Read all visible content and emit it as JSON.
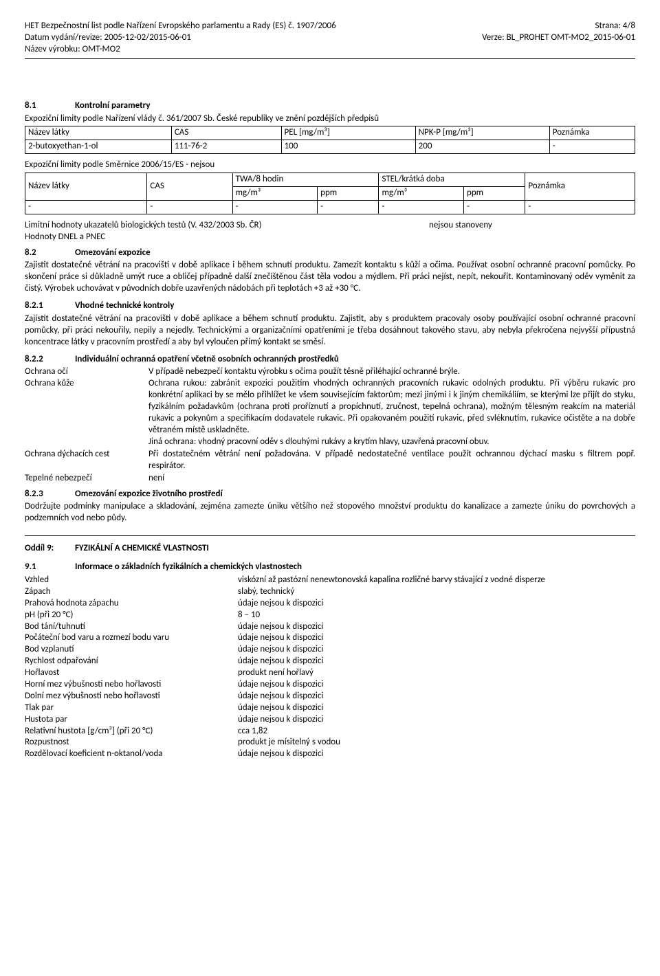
{
  "header": {
    "leftLine1": "HET Bezpečnostní list podle Nařízení Evropského parlamentu a Rady (ES) č. 1907/2006",
    "leftLine2": "Datum vydání/revize: 2005-12-02/2015-06-01",
    "leftLine3": "Název výrobku: OMT-MO2",
    "rightLine1": "Strana: 4/8",
    "rightLine2": "Verze: BL_PROHET OMT-MO2_2015-06-01"
  },
  "s81": {
    "num": "8.1",
    "title": "Kontrolní parametry",
    "line1": "Expoziční limity podle Nařízení vlády č. 361/2007 Sb. České republiky ve znění pozdějších předpisů",
    "t1": {
      "h": [
        "Název látky",
        "CAS",
        "PEL [mg/m³]",
        "NPK-P [mg/m³]",
        "Poznámka"
      ],
      "r": [
        "2-butoxyethan-1-ol",
        "111-76-2",
        "100",
        "200",
        "-"
      ]
    },
    "line2": "Expoziční limity podle Směrnice 2006/15/ES - nejsou",
    "t2": {
      "h1": [
        "Název látky",
        "CAS",
        "TWA/8 hodin",
        "STEL/krátká doba",
        "Poznámka"
      ],
      "h2": [
        "mg/m³",
        "ppm",
        "mg/m³",
        "ppm"
      ],
      "r": [
        "-",
        "-",
        "-",
        "-",
        "-",
        "-",
        "-"
      ]
    },
    "line3a": "Limitní hodnoty ukazatelů biologických testů (V. 432/2003 Sb. ČR)",
    "line3b": "nejsou stanoveny",
    "line4": "Hodnoty DNEL a PNEC"
  },
  "s82": {
    "num": "8.2",
    "title": "Omezování expozice",
    "body": "Zajistit dostatečné větrání na pracovišti v době aplikace i během schnutí produktu. Zamezit kontaktu s kůží a očima. Používat osobní ochranné pracovní pomůcky. Po skončení práce si důkladně umýt ruce a obličej případně další znečištěnou část těla vodou a mýdlem. Při práci nejíst, nepít, nekouřit. Kontaminovaný oděv vyměnit za čistý. Výrobek uchovávat v původních dobře uzavřených nádobách při teplotách +3 až +30 °C."
  },
  "s821": {
    "num": "8.2.1",
    "title": "Vhodné technické kontroly",
    "body": "Zajistit dostatečné větrání na pracovišti v době aplikace a během schnutí produktu. Zajistit, aby s produktem pracovaly osoby používající osobní ochranné pracovní pomůcky, při práci nekouřily, nepily a nejedly. Technickými a organizačními opatřeními je třeba dosáhnout takového stavu, aby nebyla překročena nejvyšší přípustná koncentrace látky v pracovním prostředí a aby byl vyloučen přímý kontakt se směsí."
  },
  "s822": {
    "num": "8.2.2",
    "title": "Individuální ochranná opatření včetně osobních ochranných prostředků",
    "rows": [
      {
        "k": "Ochrana očí",
        "v": "V případě nebezpečí kontaktu výrobku s očima použít těsně přiléhající ochranné brýle."
      },
      {
        "k": "Ochrana kůže",
        "v": "Ochrana rukou: zabránit expozici použitím vhodných ochranných pracovních rukavic odolných produktu. Při výběru rukavic pro konkrétní aplikaci by se mělo přihlížet ke všem souvisejícím faktorům; mezi jinými i k jiným chemikáliím, se kterými lze přijít do styku, fyzikálním požadavkům (ochrana proti proříznutí a propíchnutí, zručnost, tepelná ochrana), možným tělesným reakcím na materiál rukavic a pokynům a specifikacím dodavatele rukavic. Při opakovaném použití rukavic, před svléknutím, rukavice očistěte a na dobře větraném místě uskladněte.\nJiná ochrana: vhodný pracovní oděv s dlouhými rukávy a krytím hlavy, uzavřená pracovní obuv."
      },
      {
        "k": "Ochrana dýchacích cest",
        "v": "Při dostatečném větrání není požadována. V případě nedostatečné ventilace použít ochrannou dýchací masku s filtrem popř. respirátor."
      },
      {
        "k": "Tepelné nebezpečí",
        "v": "není"
      }
    ]
  },
  "s823": {
    "num": "8.2.3",
    "title": "Omezování expozice životního prostředí",
    "body": "Dodržujte podmínky manipulace a skladování, zejména zamezte úniku většího než stopového množství produktu do kanalizace a zamezte úniku do povrchových a podzemních vod nebo půdy."
  },
  "oddil9": {
    "label": "Oddíl 9:",
    "title": "FYZIKÁLNÍ A CHEMICKÉ VLASTNOSTI"
  },
  "s91": {
    "num": "9.1",
    "title": "Informace o základních fyzikálních a chemických vlastnostech",
    "rows": [
      {
        "k": "Vzhled",
        "v": "viskózní až pastózní nenewtonovská kapalina rozličné barvy stávající z vodné disperze"
      },
      {
        "k": "Zápach",
        "v": "slabý, technický"
      },
      {
        "k": "Prahová hodnota zápachu",
        "v": "údaje nejsou k dispozici"
      },
      {
        "k": "pH (při 20 °C)",
        "v": "8 – 10"
      },
      {
        "k": "Bod tání/tuhnutí",
        "v": "údaje nejsou k dispozici"
      },
      {
        "k": "Počáteční bod varu a rozmezí bodu varu",
        "v": "údaje nejsou k dispozici"
      },
      {
        "k": "Bod vzplanutí",
        "v": "údaje nejsou k dispozici"
      },
      {
        "k": "Rychlost odpařování",
        "v": "údaje nejsou k dispozici"
      },
      {
        "k": "Hořlavost",
        "v": "produkt není hořlavý"
      },
      {
        "k": "Horní mez výbušnosti nebo hořlavosti",
        "v": "údaje nejsou k dispozici"
      },
      {
        "k": "Dolní mez výbušnosti nebo hořlavosti",
        "v": "údaje nejsou k dispozici"
      },
      {
        "k": "Tlak par",
        "v": "údaje nejsou k dispozici"
      },
      {
        "k": "Hustota par",
        "v": "údaje nejsou k dispozici"
      },
      {
        "k": "Relativní hustota [g/cm³] (při 20 °C)",
        "v": "cca 1,82"
      },
      {
        "k": "Rozpustnost",
        "v": "produkt je mísitelný s vodou"
      },
      {
        "k": "Rozdělovací koeficient n-oktanol/voda",
        "v": "údaje nejsou k dispozici"
      }
    ]
  }
}
